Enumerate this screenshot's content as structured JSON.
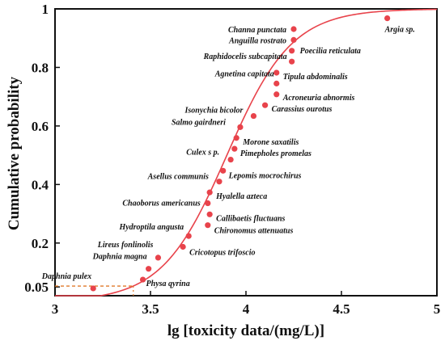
{
  "chart_data": {
    "type": "scatter",
    "xlabel": "lg [toxicity data/(mg/L)]",
    "ylabel": "Cumulative probability",
    "xlim": [
      3,
      5
    ],
    "ylim": [
      0.02,
      1.0
    ],
    "x_ticks": [
      3,
      3.5,
      4,
      4.5,
      5
    ],
    "x_tick_labels": [
      "3",
      "3.5",
      "4",
      "4.5",
      "5"
    ],
    "y_ticks": [
      0.05,
      0.2,
      0.4,
      0.6,
      0.8,
      1.0
    ],
    "y_tick_labels": [
      "0.05",
      "0.2",
      "0.4",
      "0.6",
      "0.8",
      "1"
    ],
    "grid": false,
    "point_color": "#e8434b",
    "curve_color": "#e8434b",
    "reference_line_color": "#e07a2a",
    "reference_line": {
      "x": 3.41,
      "y": 0.053
    },
    "fitted_curve": {
      "type": "logistic",
      "center": 3.9,
      "scale": 0.17
    },
    "points": [
      {
        "x": 3.2,
        "y": 0.045,
        "label": "Daphnia pulex"
      },
      {
        "x": 3.46,
        "y": 0.075,
        "label": "Physa qyrina"
      },
      {
        "x": 3.49,
        "y": 0.112,
        "label": "Daphnia magna"
      },
      {
        "x": 3.54,
        "y": 0.15,
        "label": "Lireus fonlinolis"
      },
      {
        "x": 3.67,
        "y": 0.187,
        "label": "Cricotopus trifoscio"
      },
      {
        "x": 3.7,
        "y": 0.224,
        "label": "Hydroptila angusta"
      },
      {
        "x": 3.8,
        "y": 0.261,
        "label": "Chironomus attenuatus"
      },
      {
        "x": 3.81,
        "y": 0.298,
        "label": "Callibaetis fluctuans"
      },
      {
        "x": 3.8,
        "y": 0.336,
        "label": "Chaoborus americanus"
      },
      {
        "x": 3.81,
        "y": 0.373,
        "label": "Hyalella azteca"
      },
      {
        "x": 3.86,
        "y": 0.41,
        "label": "Asellus communis"
      },
      {
        "x": 3.88,
        "y": 0.447,
        "label": "Lepomis mocrochirus"
      },
      {
        "x": 3.92,
        "y": 0.485,
        "label": "Culex s p."
      },
      {
        "x": 3.94,
        "y": 0.522,
        "label": "Pimepholes promelas"
      },
      {
        "x": 3.95,
        "y": 0.559,
        "label": "Morone saxatilis"
      },
      {
        "x": 3.97,
        "y": 0.596,
        "label": "Salmo gairdneri"
      },
      {
        "x": 4.04,
        "y": 0.634,
        "label": "Isonychia bicolor"
      },
      {
        "x": 4.1,
        "y": 0.671,
        "label": "Carassius ourotus"
      },
      {
        "x": 4.16,
        "y": 0.708,
        "label": "Acroneuria abnormis"
      },
      {
        "x": 4.16,
        "y": 0.745,
        "label": "Agnetina capitata"
      },
      {
        "x": 4.16,
        "y": 0.782,
        "label": "Tipula abdominalis"
      },
      {
        "x": 4.24,
        "y": 0.82,
        "label": "Raphidocelis subcapitata"
      },
      {
        "x": 4.24,
        "y": 0.857,
        "label": "Poecilia reticulata"
      },
      {
        "x": 4.25,
        "y": 0.894,
        "label": "Anguilla rostrato"
      },
      {
        "x": 4.25,
        "y": 0.931,
        "label": "Channa punctata"
      },
      {
        "x": 4.74,
        "y": 0.968,
        "label": "Argia sp."
      }
    ]
  }
}
